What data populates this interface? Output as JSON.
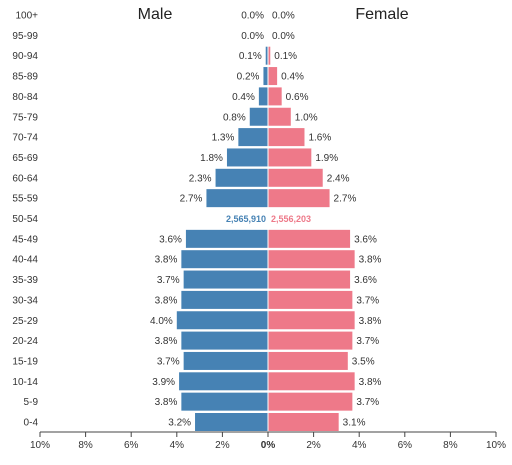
{
  "chart_data": {
    "type": "bar",
    "orientation": "horizontal-pyramid",
    "titles": {
      "left": "Male",
      "right": "Female"
    },
    "categories": [
      "100+",
      "95-99",
      "90-94",
      "85-89",
      "80-84",
      "75-79",
      "70-74",
      "65-69",
      "60-64",
      "55-59",
      "50-54",
      "45-49",
      "40-44",
      "35-39",
      "30-34",
      "25-29",
      "20-24",
      "15-19",
      "10-14",
      "5-9",
      "0-4"
    ],
    "series": [
      {
        "name": "Male",
        "color": "#4682b4",
        "values": [
          0.0,
          0.0,
          0.1,
          0.2,
          0.4,
          0.8,
          1.3,
          1.8,
          2.3,
          2.7,
          null,
          3.6,
          3.8,
          3.7,
          3.8,
          4.0,
          3.8,
          3.7,
          3.9,
          3.8,
          3.2
        ],
        "labels": [
          "0.0%",
          "0.0%",
          "0.1%",
          "0.2%",
          "0.4%",
          "0.8%",
          "1.3%",
          "1.8%",
          "2.3%",
          "2.7%",
          "",
          "3.6%",
          "3.8%",
          "3.7%",
          "3.8%",
          "4.0%",
          "3.8%",
          "3.7%",
          "3.9%",
          "3.8%",
          "3.2%"
        ]
      },
      {
        "name": "Female",
        "color": "#ee7989",
        "values": [
          0.0,
          0.0,
          0.1,
          0.4,
          0.6,
          1.0,
          1.6,
          1.9,
          2.4,
          2.7,
          null,
          3.6,
          3.8,
          3.6,
          3.7,
          3.8,
          3.7,
          3.5,
          3.8,
          3.7,
          3.1
        ],
        "labels": [
          "0.0%",
          "0.0%",
          "0.1%",
          "0.4%",
          "0.6%",
          "1.0%",
          "1.6%",
          "1.9%",
          "2.4%",
          "2.7%",
          "",
          "3.6%",
          "3.8%",
          "3.6%",
          "3.7%",
          "3.8%",
          "3.7%",
          "3.5%",
          "3.8%",
          "3.7%",
          "3.1%"
        ]
      }
    ],
    "totals": {
      "male": "2,565,910",
      "female": "2,556,203",
      "row": "50-54"
    },
    "xaxis": {
      "ticks": [
        -10,
        -8,
        -6,
        -4,
        -2,
        0,
        2,
        4,
        6,
        8,
        10
      ],
      "tick_labels": [
        "10%",
        "8%",
        "6%",
        "4%",
        "2%",
        "0%",
        "2%",
        "4%",
        "6%",
        "8%",
        "10%"
      ],
      "xlim": [
        -10,
        10
      ]
    },
    "grid": false,
    "legend": "none"
  }
}
